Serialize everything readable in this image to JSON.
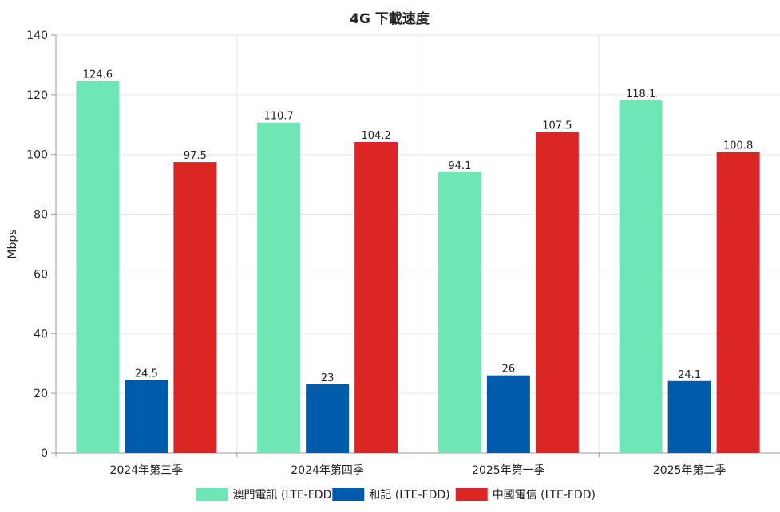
{
  "chart_data": {
    "type": "bar",
    "title": "4G 下載速度",
    "xlabel": "",
    "ylabel": "Mbps",
    "ylim": [
      0,
      140
    ],
    "yticks": [
      0,
      20,
      40,
      60,
      80,
      100,
      120,
      140
    ],
    "grid": true,
    "legend_position": "bottom",
    "categories": [
      "2024年第三季",
      "2024年第四季",
      "2025年第一季",
      "2025年第二季"
    ],
    "series": [
      {
        "name": "澳門電訊 (LTE-FDD)",
        "color": "#6ee7b7",
        "values": [
          124.6,
          110.7,
          94.1,
          118.1
        ],
        "labels": [
          "124.6",
          "110.7",
          "94.1",
          "118.1"
        ]
      },
      {
        "name": "和記 (LTE-FDD)",
        "color": "#005bac",
        "values": [
          24.5,
          23,
          26,
          24.1
        ],
        "labels": [
          "24.5",
          "23",
          "26",
          "24.1"
        ]
      },
      {
        "name": "中國電信 (LTE-FDD)",
        "color": "#dc2626",
        "values": [
          97.5,
          104.2,
          107.5,
          100.8
        ],
        "labels": [
          "97.5",
          "104.2",
          "107.5",
          "100.8"
        ]
      }
    ]
  }
}
